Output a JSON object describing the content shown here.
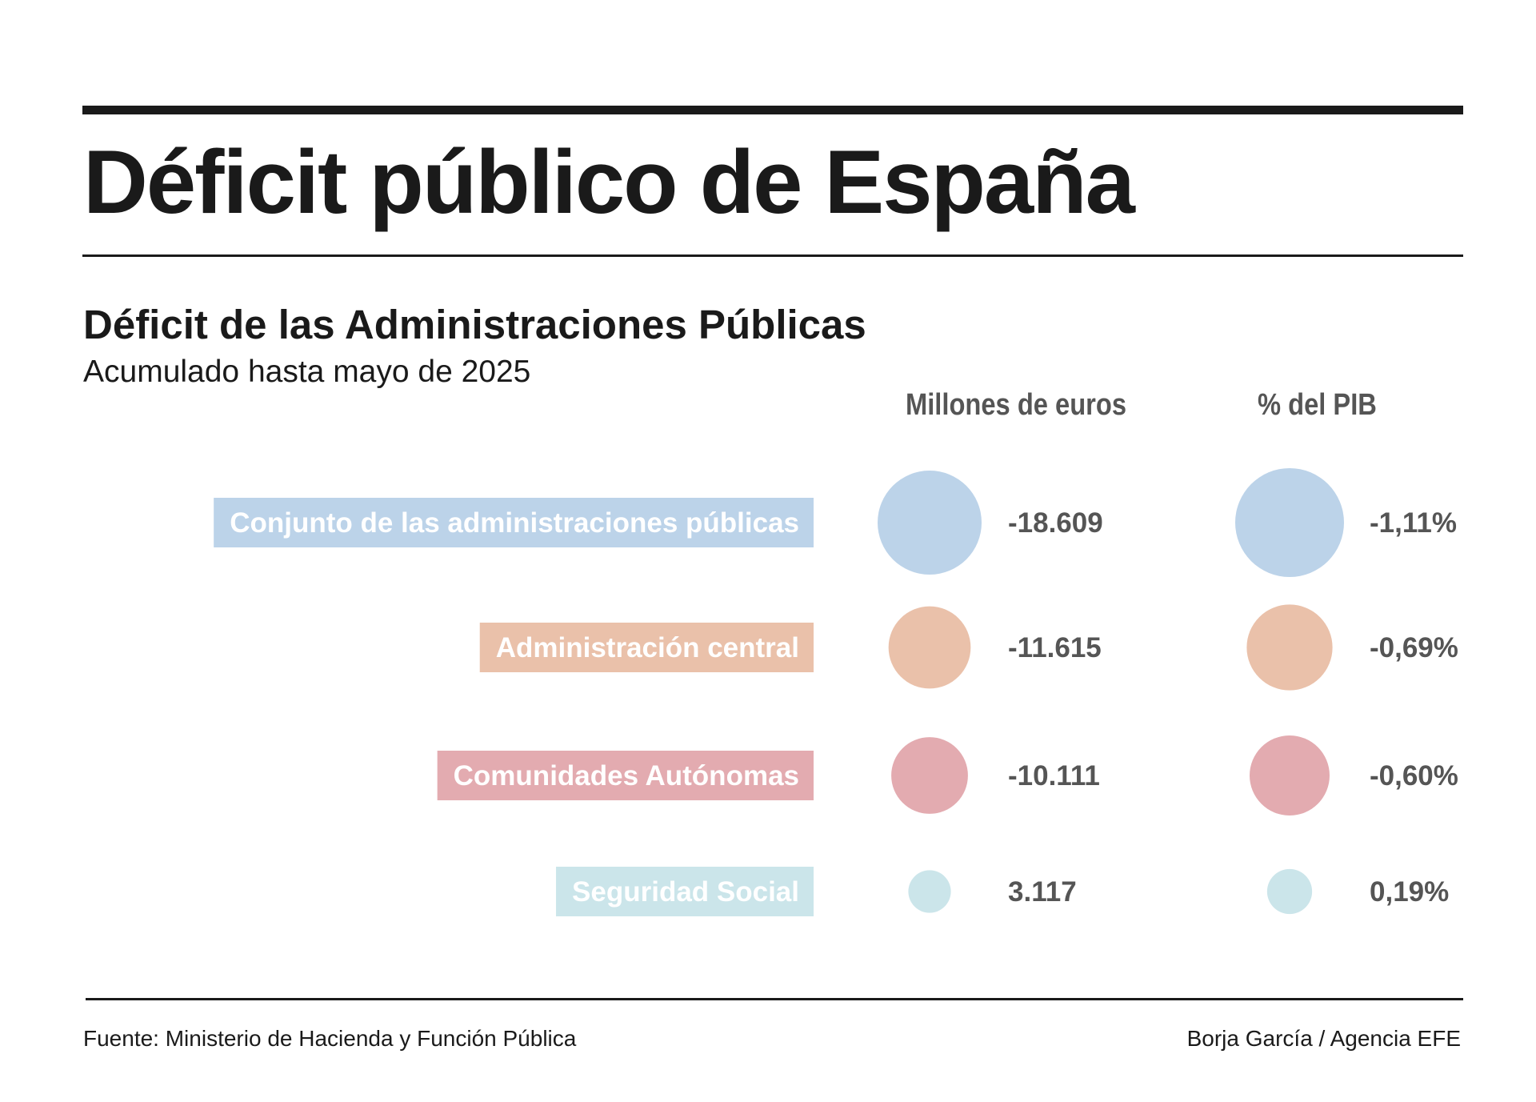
{
  "title": "Déficit público de España",
  "subtitle": "Déficit de las Administraciones Públicas",
  "subsubtitle": "Acumulado hasta mayo de 2025",
  "columns": {
    "eur": "Millones de euros",
    "pib": "% del PIB"
  },
  "footer": {
    "source": "Fuente: Ministerio de Hacienda y Función Pública",
    "credit": "Borja García / Agencia EFE"
  },
  "chart_data": {
    "type": "bubble-table",
    "categories": [
      "Conjunto de las administraciones públicas",
      "Administración central",
      "Comunidades Autónomas",
      "Seguridad Social"
    ],
    "colors": [
      "#bcd3e9",
      "#eac1aa",
      "#e3abb0",
      "#cbe5ea"
    ],
    "series": [
      {
        "name": "Millones de euros",
        "values": [
          -18609,
          -11615,
          -10111,
          3117
        ],
        "labels": [
          "-18.609",
          "-11.615",
          "-10.111",
          "3.117"
        ]
      },
      {
        "name": "% del PIB",
        "values": [
          -1.11,
          -0.69,
          -0.6,
          0.19
        ],
        "labels": [
          "-1,11%",
          "-0,69%",
          "-0,60%",
          "0,19%"
        ]
      }
    ]
  }
}
